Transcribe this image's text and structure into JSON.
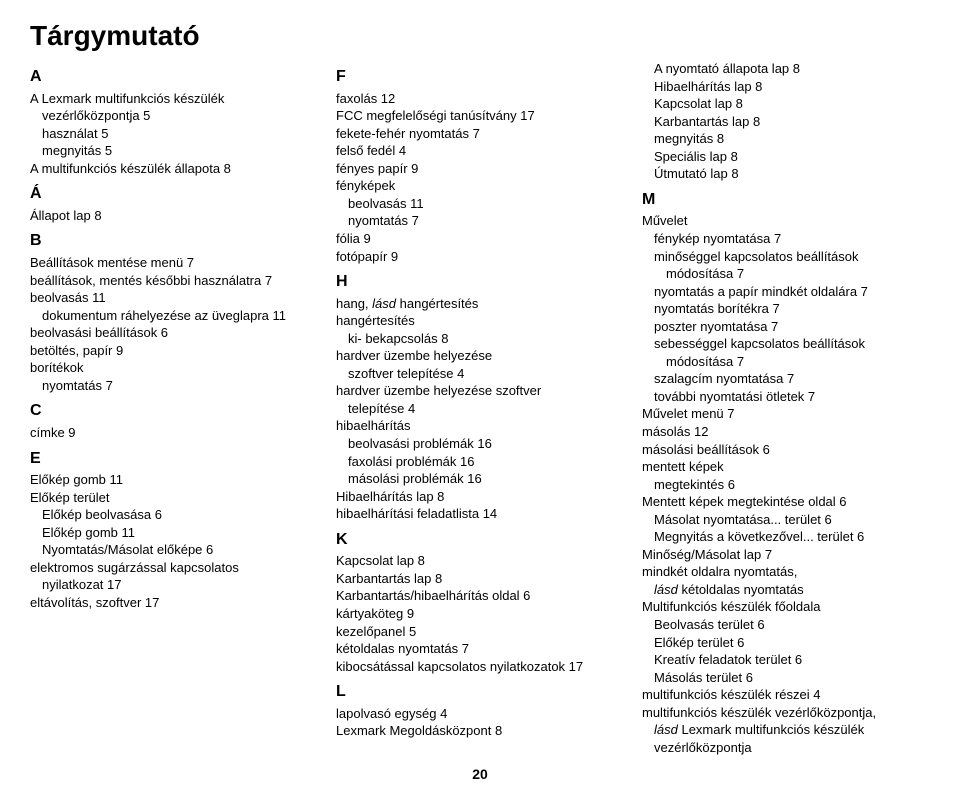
{
  "title": "Tárgymutató",
  "pageNumber": "20",
  "col1": {
    "s0": {
      "letter": "A",
      "lines": [
        {
          "t": "A Lexmark multifunkciós készülék",
          "i": 0
        },
        {
          "t": "vezérlőközpontja 5",
          "i": 1
        },
        {
          "t": "használat 5",
          "i": 1
        },
        {
          "t": "megnyitás 5",
          "i": 1
        },
        {
          "t": "A multifunkciós készülék állapota 8",
          "i": 0
        }
      ]
    },
    "s1": {
      "letter": "Á",
      "lines": [
        {
          "t": "Állapot lap 8",
          "i": 0
        }
      ]
    },
    "s2": {
      "letter": "B",
      "lines": [
        {
          "t": "Beállítások mentése menü 7",
          "i": 0
        },
        {
          "t": "beállítások, mentés későbbi használatra 7",
          "i": 0
        },
        {
          "t": "beolvasás 11",
          "i": 0
        },
        {
          "t": "dokumentum ráhelyezése az üveglapra 11",
          "i": 1
        },
        {
          "t": "beolvasási beállítások 6",
          "i": 0
        },
        {
          "t": "betöltés, papír 9",
          "i": 0
        },
        {
          "t": "borítékok",
          "i": 0
        },
        {
          "t": "nyomtatás 7",
          "i": 1
        }
      ]
    },
    "s3": {
      "letter": "C",
      "lines": [
        {
          "t": "címke 9",
          "i": 0
        }
      ]
    },
    "s4": {
      "letter": "E",
      "lines": [
        {
          "t": "Előkép gomb 11",
          "i": 0
        },
        {
          "t": "Előkép terület",
          "i": 0
        },
        {
          "t": "Előkép beolvasása 6",
          "i": 1
        },
        {
          "t": "Előkép gomb 11",
          "i": 1
        },
        {
          "t": "Nyomtatás/Másolat előképe 6",
          "i": 1
        },
        {
          "t": "elektromos sugárzással kapcsolatos",
          "i": 0
        },
        {
          "t": "nyilatkozat 17",
          "i": 1
        },
        {
          "t": "eltávolítás, szoftver 17",
          "i": 0
        }
      ]
    }
  },
  "col2": {
    "s0": {
      "letter": "F",
      "lines": [
        {
          "t": "faxolás 12",
          "i": 0
        },
        {
          "t": "FCC megfelelőségi tanúsítvány 17",
          "i": 0
        },
        {
          "t": "fekete-fehér nyomtatás 7",
          "i": 0
        },
        {
          "t": "felső fedél 4",
          "i": 0
        },
        {
          "t": "fényes papír 9",
          "i": 0
        },
        {
          "t": "fényképek",
          "i": 0
        },
        {
          "t": "beolvasás 11",
          "i": 1
        },
        {
          "t": "nyomtatás 7",
          "i": 1
        },
        {
          "t": "fólia 9",
          "i": 0
        },
        {
          "t": "fotópapír 9",
          "i": 0
        }
      ]
    },
    "s1": {
      "letter": "H",
      "lines": [
        {
          "t": "hang, <i>lásd</i> hangértesítés",
          "i": 0
        },
        {
          "t": "hangértesítés",
          "i": 0
        },
        {
          "t": "ki- bekapcsolás 8",
          "i": 1
        },
        {
          "t": "hardver üzembe helyezése",
          "i": 0
        },
        {
          "t": "szoftver telepítése 4",
          "i": 1
        },
        {
          "t": "hardver üzembe helyezése szoftver",
          "i": 0
        },
        {
          "t": "telepítése 4",
          "i": 1
        },
        {
          "t": "hibaelhárítás",
          "i": 0
        },
        {
          "t": "beolvasási problémák 16",
          "i": 1
        },
        {
          "t": "faxolási problémák 16",
          "i": 1
        },
        {
          "t": "másolási problémák 16",
          "i": 1
        },
        {
          "t": "Hibaelhárítás lap 8",
          "i": 0
        },
        {
          "t": "hibaelhárítási feladatlista 14",
          "i": 0
        }
      ]
    },
    "s2": {
      "letter": "K",
      "lines": [
        {
          "t": "Kapcsolat lap 8",
          "i": 0
        },
        {
          "t": "Karbantartás lap 8",
          "i": 0
        },
        {
          "t": "Karbantartás/hibaelhárítás oldal 6",
          "i": 0
        },
        {
          "t": "kártyaköteg 9",
          "i": 0
        },
        {
          "t": "kezelőpanel 5",
          "i": 0
        },
        {
          "t": "kétoldalas nyomtatás 7",
          "i": 0
        },
        {
          "t": "kibocsátással kapcsolatos nyilatkozatok 17",
          "i": 0
        }
      ]
    },
    "s3": {
      "letter": "L",
      "lines": [
        {
          "t": "lapolvasó egység 4",
          "i": 0
        },
        {
          "t": "Lexmark Megoldásközpont 8",
          "i": 0
        }
      ]
    }
  },
  "col3": {
    "s0": {
      "letter": "",
      "lines": [
        {
          "t": "A nyomtató állapota lap 8",
          "i": 1
        },
        {
          "t": "Hibaelhárítás lap 8",
          "i": 1
        },
        {
          "t": "Kapcsolat lap 8",
          "i": 1
        },
        {
          "t": "Karbantartás lap 8",
          "i": 1
        },
        {
          "t": "megnyitás 8",
          "i": 1
        },
        {
          "t": "Speciális lap 8",
          "i": 1
        },
        {
          "t": "Útmutató lap 8",
          "i": 1
        }
      ]
    },
    "s1": {
      "letter": "M",
      "lines": [
        {
          "t": "Művelet",
          "i": 0
        },
        {
          "t": "fénykép nyomtatása 7",
          "i": 1
        },
        {
          "t": "minőséggel kapcsolatos beállítások",
          "i": 1
        },
        {
          "t": "módosítása 7",
          "i": 2
        },
        {
          "t": "nyomtatás a papír mindkét oldalára 7",
          "i": 1
        },
        {
          "t": "nyomtatás borítékra 7",
          "i": 1
        },
        {
          "t": "poszter nyomtatása 7",
          "i": 1
        },
        {
          "t": "sebességgel kapcsolatos beállítások",
          "i": 1
        },
        {
          "t": "módosítása 7",
          "i": 2
        },
        {
          "t": "szalagcím nyomtatása 7",
          "i": 1
        },
        {
          "t": "további nyomtatási ötletek 7",
          "i": 1
        },
        {
          "t": "Művelet menü 7",
          "i": 0
        },
        {
          "t": "másolás 12",
          "i": 0
        },
        {
          "t": "másolási beállítások 6",
          "i": 0
        },
        {
          "t": "mentett képek",
          "i": 0
        },
        {
          "t": "megtekintés 6",
          "i": 1
        },
        {
          "t": "Mentett képek megtekintése oldal 6",
          "i": 0
        },
        {
          "t": "Másolat nyomtatása... terület 6",
          "i": 1
        },
        {
          "t": "Megnyitás a következővel... terület 6",
          "i": 1
        },
        {
          "t": "Minőség/Másolat lap 7",
          "i": 0
        },
        {
          "t": "mindkét oldalra nyomtatás,",
          "i": 0
        },
        {
          "t": "<i>lásd</i> kétoldalas nyomtatás",
          "i": 1
        },
        {
          "t": "Multifunkciós készülék főoldala",
          "i": 0
        },
        {
          "t": "Beolvasás terület 6",
          "i": 1
        },
        {
          "t": "Előkép terület 6",
          "i": 1
        },
        {
          "t": "Kreatív feladatok terület 6",
          "i": 1
        },
        {
          "t": "Másolás terület 6",
          "i": 1
        },
        {
          "t": "multifunkciós készülék részei 4",
          "i": 0
        },
        {
          "t": "multifunkciós készülék vezérlőközpontja,",
          "i": 0
        },
        {
          "t": "<i>lásd</i> Lexmark multifunkciós készülék",
          "i": 1
        },
        {
          "t": "vezérlőközpontja",
          "i": 1
        }
      ]
    }
  }
}
